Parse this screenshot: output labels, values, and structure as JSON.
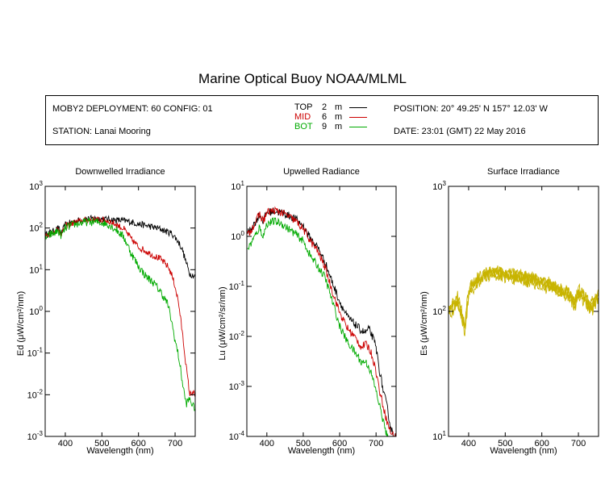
{
  "title": "Marine Optical Buoy NOAA/MLML",
  "info": {
    "deployment": "MOBY2 DEPLOYMENT: 60 CONFIG: 01",
    "station": "STATION: Lanai Mooring",
    "position": "POSITION: 20° 49.25' N   157° 12.03' W",
    "date": "DATE: 23:01 (GMT) 22 May 2016",
    "legend": [
      {
        "name": "TOP",
        "depth": "2",
        "unit": "m",
        "color": "#000000"
      },
      {
        "name": "MID",
        "depth": "6",
        "unit": "m",
        "color": "#cc0000"
      },
      {
        "name": "BOT",
        "depth": "9",
        "unit": "m",
        "color": "#00aa00"
      }
    ]
  },
  "chart_data": [
    {
      "type": "line",
      "title": "Downwelled Irradiance",
      "xlabel": "Wavelength (nm)",
      "ylabel": "Ed  (μW/cm²/nm)",
      "yscale": "log",
      "xlim": [
        345,
        755
      ],
      "ylim_exp": [
        -3,
        3
      ],
      "xticks": [
        400,
        500,
        600,
        700
      ],
      "yticks_exp": [
        -3,
        -2,
        -1,
        0,
        1,
        2,
        3
      ],
      "series": [
        {
          "name": "TOP",
          "color": "#000000",
          "noise": 0.08,
          "x": [
            350,
            360,
            370,
            380,
            390,
            400,
            420,
            440,
            460,
            480,
            500,
            520,
            540,
            560,
            580,
            600,
            620,
            640,
            660,
            680,
            690,
            700,
            710,
            720,
            730,
            740,
            755
          ],
          "y": [
            70,
            80,
            85,
            100,
            75,
            120,
            140,
            155,
            165,
            170,
            165,
            160,
            155,
            150,
            140,
            125,
            115,
            105,
            95,
            80,
            75,
            60,
            45,
            30,
            15,
            8,
            7
          ]
        },
        {
          "name": "MID",
          "color": "#cc0000",
          "noise": 0.08,
          "x": [
            350,
            360,
            370,
            380,
            390,
            400,
            420,
            440,
            460,
            480,
            500,
            520,
            540,
            560,
            580,
            600,
            620,
            640,
            660,
            680,
            690,
            700,
            710,
            720,
            730,
            740,
            750,
            755
          ],
          "y": [
            65,
            75,
            80,
            95,
            70,
            110,
            130,
            145,
            155,
            160,
            155,
            145,
            120,
            95,
            55,
            35,
            28,
            22,
            18,
            12,
            8,
            4,
            1.5,
            0.3,
            0.05,
            0.01,
            0.012,
            0.008
          ]
        },
        {
          "name": "BOT",
          "color": "#00aa00",
          "noise": 0.1,
          "x": [
            350,
            360,
            370,
            380,
            390,
            400,
            420,
            440,
            460,
            480,
            500,
            520,
            540,
            560,
            580,
            600,
            620,
            640,
            660,
            680,
            690,
            700,
            710,
            720,
            730,
            740,
            750
          ],
          "y": [
            60,
            70,
            75,
            85,
            65,
            100,
            120,
            130,
            140,
            140,
            135,
            120,
            90,
            60,
            25,
            12,
            7,
            5,
            3,
            1.5,
            0.6,
            0.2,
            0.08,
            0.02,
            0.006,
            0.008,
            0.005
          ]
        }
      ]
    },
    {
      "type": "line",
      "title": "Upwelled Radiance",
      "xlabel": "Wavelength (nm)",
      "ylabel": "Lu  (μW/cm²/sr/nm)",
      "yscale": "log",
      "xlim": [
        345,
        755
      ],
      "ylim_exp": [
        -4,
        1
      ],
      "xticks": [
        400,
        500,
        600,
        700
      ],
      "yticks_exp": [
        -4,
        -3,
        -2,
        -1,
        0,
        1
      ],
      "series": [
        {
          "name": "TOP",
          "color": "#000000",
          "noise": 0.08,
          "x": [
            350,
            360,
            370,
            380,
            390,
            400,
            420,
            440,
            460,
            480,
            500,
            520,
            540,
            560,
            580,
            600,
            620,
            640,
            660,
            670,
            680,
            690,
            700,
            710,
            720,
            730,
            740,
            750
          ],
          "y": [
            1.2,
            1.6,
            2.0,
            2.8,
            2.0,
            3.0,
            3.2,
            3.0,
            2.6,
            2.2,
            1.6,
            0.9,
            0.6,
            0.3,
            0.12,
            0.05,
            0.025,
            0.018,
            0.013,
            0.012,
            0.014,
            0.01,
            0.006,
            0.002,
            0.0008,
            0.0004,
            0.00015,
            0.0001
          ]
        },
        {
          "name": "MID",
          "color": "#cc0000",
          "noise": 0.08,
          "x": [
            350,
            360,
            370,
            380,
            390,
            400,
            420,
            440,
            460,
            480,
            500,
            520,
            540,
            560,
            580,
            600,
            620,
            640,
            650,
            660,
            670,
            680,
            690,
            700,
            710,
            720,
            730,
            740,
            750
          ],
          "y": [
            1.1,
            1.5,
            2.0,
            2.8,
            2.0,
            3.0,
            3.3,
            3.0,
            2.5,
            2.0,
            1.4,
            0.8,
            0.5,
            0.24,
            0.08,
            0.03,
            0.015,
            0.01,
            0.008,
            0.006,
            0.007,
            0.006,
            0.004,
            0.002,
            0.0008,
            0.0004,
            0.0002,
            0.00012,
            0.0001
          ]
        },
        {
          "name": "BOT",
          "color": "#00aa00",
          "noise": 0.08,
          "x": [
            350,
            360,
            370,
            380,
            390,
            400,
            420,
            440,
            460,
            480,
            500,
            520,
            540,
            560,
            580,
            600,
            620,
            640,
            650,
            660,
            670,
            680,
            690,
            700,
            710,
            720,
            730,
            740,
            750
          ],
          "y": [
            0.6,
            0.8,
            1.1,
            1.5,
            1.0,
            1.8,
            2.0,
            1.8,
            1.4,
            1.1,
            0.8,
            0.4,
            0.25,
            0.15,
            0.05,
            0.016,
            0.008,
            0.005,
            0.004,
            0.003,
            0.0032,
            0.0025,
            0.0015,
            0.0008,
            0.0004,
            0.0002,
            0.0001,
            6e-05,
            5e-05
          ]
        }
      ]
    },
    {
      "type": "line",
      "title": "Surface Irradiance",
      "xlabel": "Wavelength (nm)",
      "ylabel": "Es  (μW/cm²/nm)",
      "yscale": "log",
      "xlim": [
        345,
        755
      ],
      "ylim_exp": [
        1,
        3
      ],
      "xticks": [
        400,
        500,
        600,
        700
      ],
      "yticks_exp": [
        1,
        2,
        3
      ],
      "series": [
        {
          "color": "#c8b400",
          "noise": 0.05,
          "x": [
            350,
            360,
            370,
            380,
            390,
            400,
            420,
            440,
            460,
            480,
            500,
            520,
            540,
            560,
            580,
            600,
            620,
            640,
            660,
            680,
            690,
            700,
            710,
            720,
            730,
            740,
            750
          ],
          "y": [
            100,
            110,
            120,
            95,
            70,
            140,
            170,
            190,
            205,
            200,
            195,
            190,
            185,
            180,
            175,
            165,
            160,
            150,
            140,
            130,
            110,
            140,
            130,
            120,
            105,
            110,
            125
          ]
        },
        {
          "color": "#c8b400",
          "noise": 0.05,
          "x": [
            350,
            360,
            370,
            380,
            390,
            400,
            420,
            440,
            460,
            480,
            500,
            520,
            540,
            560,
            580,
            600,
            620,
            640,
            660,
            680,
            690,
            700,
            710,
            720,
            730,
            740,
            750
          ],
          "y": [
            105,
            115,
            125,
            100,
            75,
            145,
            175,
            195,
            210,
            205,
            200,
            195,
            190,
            185,
            180,
            170,
            165,
            155,
            145,
            135,
            115,
            145,
            135,
            125,
            110,
            115,
            130
          ]
        },
        {
          "color": "#c8b400",
          "noise": 0.05,
          "x": [
            350,
            360,
            370,
            380,
            390,
            400,
            420,
            440,
            460,
            480,
            500,
            520,
            540,
            560,
            580,
            600,
            620,
            640,
            660,
            680,
            690,
            700,
            710,
            720,
            730,
            740,
            750
          ],
          "y": [
            95,
            105,
            115,
            92,
            68,
            135,
            165,
            185,
            198,
            193,
            188,
            183,
            178,
            173,
            168,
            158,
            153,
            145,
            135,
            125,
            105,
            135,
            125,
            115,
            100,
            105,
            120
          ]
        },
        {
          "color": "#c8b400",
          "noise": 0.05,
          "x": [
            350,
            360,
            370,
            380,
            390,
            400,
            420,
            440,
            460,
            480,
            500,
            520,
            540,
            560,
            580,
            600,
            620,
            640,
            660,
            680,
            690,
            700,
            710,
            720,
            730,
            740,
            750
          ],
          "y": [
            110,
            120,
            130,
            105,
            80,
            150,
            180,
            200,
            215,
            210,
            205,
            200,
            195,
            190,
            185,
            175,
            170,
            160,
            150,
            140,
            120,
            150,
            140,
            130,
            115,
            120,
            135
          ]
        }
      ]
    }
  ]
}
